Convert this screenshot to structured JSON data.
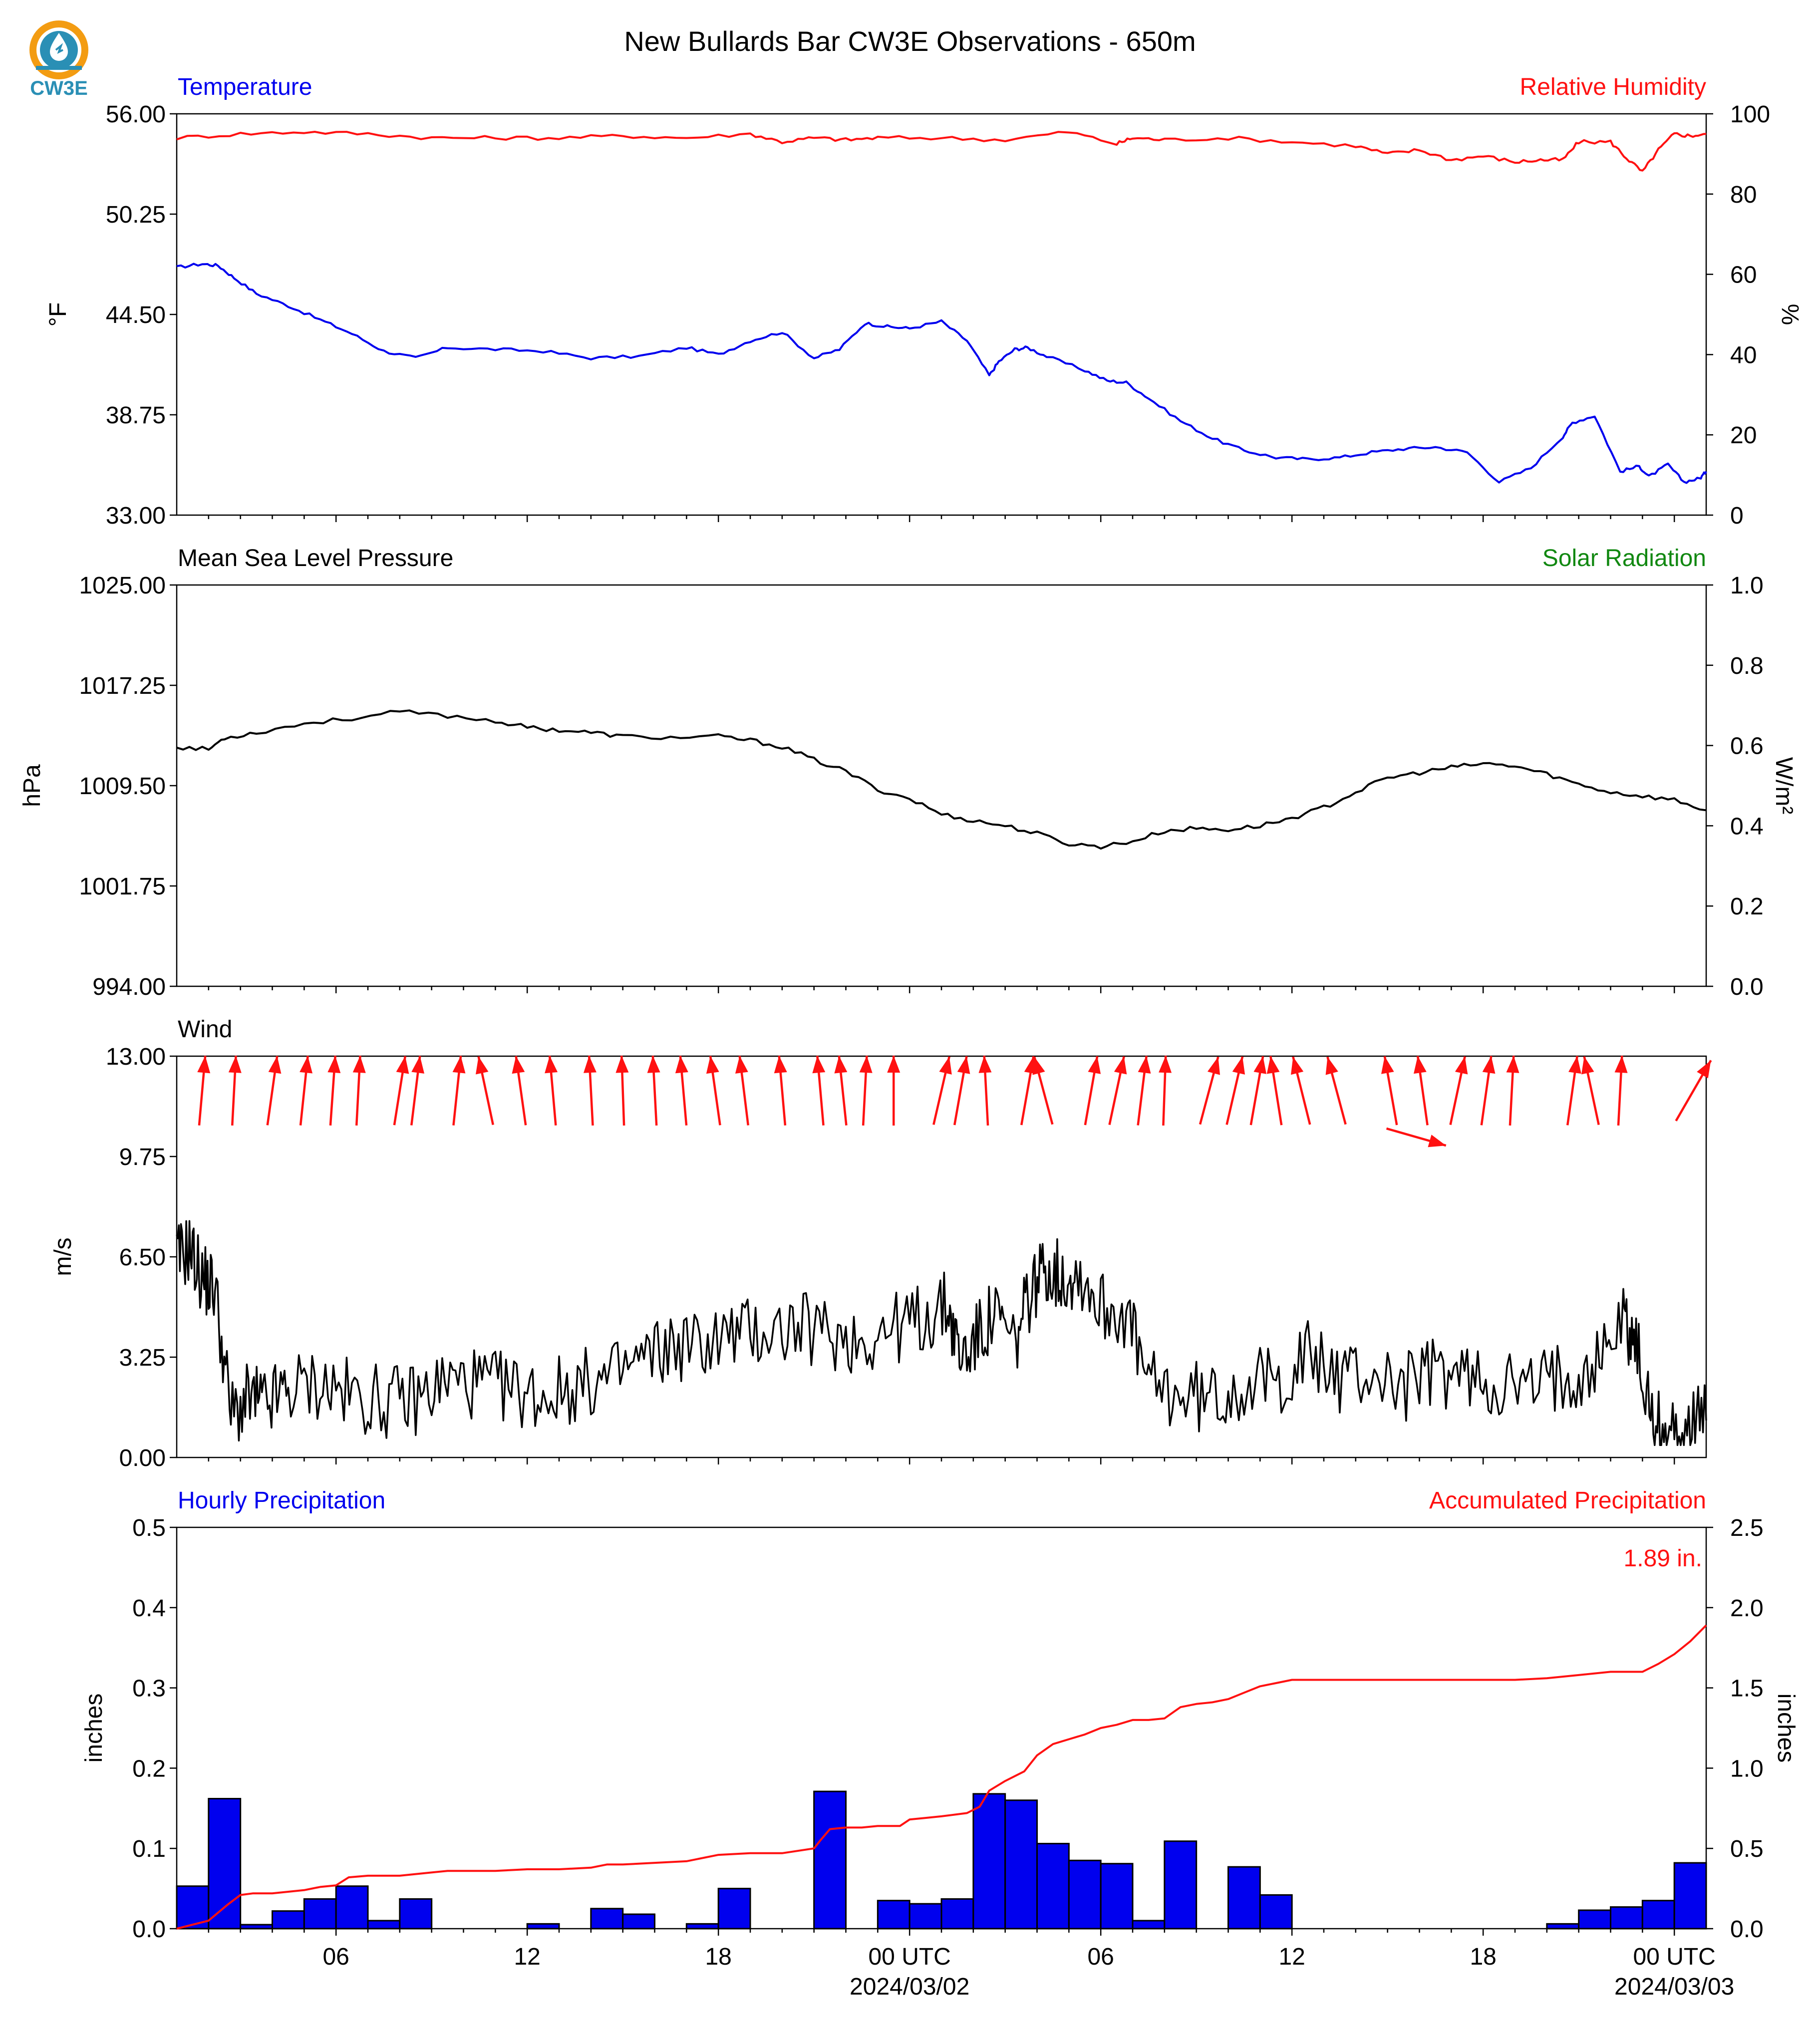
{
  "title": "New Bullards Bar CW3E Observations - 650m",
  "logo": {
    "text": "CW3E",
    "icon": "cw3e-water-drop-logo-icon",
    "colors": [
      "#f39c12",
      "#2a8fb5"
    ]
  },
  "colors": {
    "blue": "#0000ee",
    "red": "#ff1111",
    "green": "#118811",
    "black": "#000000"
  },
  "time_axis": {
    "tick_labels": [
      "06",
      "12",
      "18",
      "00 UTC",
      "06",
      "12",
      "18",
      "00 UTC"
    ],
    "date_labels": [
      "2024/03/02",
      "2024/03/03"
    ]
  },
  "chart_data": [
    {
      "type": "line",
      "panel": "temperature-humidity",
      "left_title": "Temperature",
      "right_title": "Relative Humidity",
      "ylabel_left": "°F",
      "ylabel_right": "%",
      "yticks_left": [
        "56.00",
        "50.25",
        "44.50",
        "38.75",
        "33.00"
      ],
      "yticks_right": [
        "100",
        "80",
        "60",
        "40",
        "20",
        "0"
      ],
      "ylim_left": [
        33,
        56
      ],
      "ylim_right": [
        0,
        100
      ],
      "xlim_hours": [
        1,
        49
      ],
      "series": [
        {
          "name": "Temperature",
          "axis": "left",
          "color": "#0000ee",
          "x": [
            1.0,
            1.8,
            2.3,
            2.8,
            3.5,
            4.5,
            5.5,
            6.5,
            7.5,
            8.5,
            9.5,
            11,
            12.5,
            14,
            15.5,
            17,
            18,
            19,
            20,
            21,
            21.8,
            22.6,
            23.3,
            24,
            25,
            25.8,
            26.5,
            26.8,
            27.3,
            27.7,
            28.3,
            29.5,
            30.2,
            30.8,
            31.5,
            32.5,
            33.5,
            34.5,
            35.5,
            36.5,
            37.5,
            38.5,
            39.5,
            40.5,
            41.5,
            42.5,
            43.5,
            44.5,
            44.8,
            45.5,
            46.3,
            46.9,
            47.2,
            47.8,
            48.3,
            48.8,
            49.0
          ],
          "y": [
            47.2,
            47.4,
            47.3,
            46.6,
            45.7,
            45.0,
            44.2,
            43.4,
            42.4,
            42.0,
            42.6,
            42.5,
            42.4,
            42.0,
            42.1,
            42.6,
            42.2,
            43.0,
            43.5,
            42.0,
            42.5,
            44.0,
            43.8,
            43.7,
            44.1,
            43.0,
            41.0,
            41.8,
            42.5,
            42.6,
            42.1,
            41.3,
            40.7,
            40.6,
            39.7,
            38.4,
            37.4,
            36.7,
            36.3,
            36.2,
            36.3,
            36.6,
            36.8,
            36.9,
            36.6,
            34.9,
            35.7,
            37.5,
            38.3,
            38.7,
            35.5,
            35.8,
            35.2,
            35.9,
            34.9,
            35.1,
            35.5
          ]
        },
        {
          "name": "Relative Humidity",
          "axis": "right",
          "color": "#ff1111",
          "x": [
            1.0,
            3,
            5,
            7,
            9,
            11,
            13,
            15,
            17,
            19,
            20,
            21,
            22,
            23,
            25,
            27,
            29,
            30.5,
            31,
            32,
            34,
            36,
            38,
            39,
            40,
            41,
            42,
            43,
            43.8,
            44.5,
            45,
            46,
            46.5,
            47,
            47.5,
            48,
            48.5,
            49.0
          ],
          "y": [
            94,
            95,
            95.5,
            95,
            94,
            94,
            94,
            94.5,
            94,
            95,
            93,
            94,
            93.5,
            94,
            94,
            93.5,
            95.5,
            92.5,
            94,
            93.5,
            94,
            93,
            92,
            90,
            91,
            88.5,
            89.5,
            88,
            88.5,
            88.5,
            93,
            93,
            89,
            85.5,
            91,
            95,
            94.5,
            95
          ]
        }
      ]
    },
    {
      "type": "line",
      "panel": "pressure-solar",
      "left_title": "Mean Sea Level Pressure",
      "right_title": "Solar Radiation",
      "ylabel_left": "hPa",
      "ylabel_right": "W/m²",
      "yticks_left": [
        "1025.00",
        "1017.25",
        "1009.50",
        "1001.75",
        "994.00"
      ],
      "yticks_right": [
        "1.0",
        "0.8",
        "0.6",
        "0.4",
        "0.2",
        "0.0"
      ],
      "ylim_left": [
        994,
        1025
      ],
      "ylim_right": [
        0,
        1
      ],
      "series": [
        {
          "name": "Mean Sea Level Pressure",
          "axis": "left",
          "color": "#000000",
          "x": [
            1.0,
            2.0,
            2.5,
            3.5,
            5,
            6.5,
            8,
            9.5,
            11,
            12,
            13,
            14,
            15,
            16.5,
            18,
            19,
            20,
            21,
            22,
            23,
            24,
            25,
            26,
            27,
            28,
            29,
            30,
            31,
            32,
            33,
            34,
            35,
            36,
            37,
            38,
            39,
            40,
            41,
            42,
            43,
            44,
            45,
            46,
            47,
            48,
            49.0
          ],
          "y": [
            1012.5,
            1012.3,
            1013.2,
            1013.6,
            1014.3,
            1014.7,
            1015.2,
            1014.9,
            1014.5,
            1014.0,
            1013.8,
            1013.6,
            1013.3,
            1013.2,
            1013.3,
            1013.0,
            1012.5,
            1011.5,
            1010.6,
            1009.2,
            1008.5,
            1007.3,
            1006.8,
            1006.4,
            1005.8,
            1005.0,
            1004.8,
            1005.2,
            1006.0,
            1006.2,
            1006.1,
            1006.4,
            1007.0,
            1007.8,
            1009.0,
            1010.1,
            1010.5,
            1010.9,
            1011.2,
            1011.0,
            1010.4,
            1009.6,
            1009.0,
            1008.7,
            1008.4,
            1007.6
          ]
        }
      ]
    },
    {
      "type": "line",
      "panel": "wind",
      "left_title": "Wind",
      "ylabel_left": "m/s",
      "yticks_left": [
        "13.00",
        "9.75",
        "6.50",
        "3.25",
        "0.00"
      ],
      "ylim_left": [
        0,
        13
      ],
      "series": [
        {
          "name": "Wind Speed",
          "axis": "left",
          "color": "#000000",
          "x": [
            1.0,
            1.4,
            1.8,
            2.2,
            2.7,
            3.3,
            3.8,
            4.5,
            5.5,
            6.5,
            7.5,
            8.5,
            9.5,
            10.5,
            11.5,
            12.5,
            13.5,
            14.5,
            15.5,
            16.5,
            17.5,
            18.5,
            19.5,
            20.5,
            21.5,
            22.5,
            23.5,
            24.5,
            25.2,
            25.6,
            26.2,
            26.7,
            27.3,
            27.8,
            28.3,
            28.8,
            29.3,
            30,
            30.8,
            31.5,
            32.5,
            33.5,
            34.5,
            35.5,
            36.5,
            37.5,
            38.5,
            39.5,
            40.5,
            41.5,
            42.5,
            43.5,
            44.5,
            45.5,
            46.4,
            46.8,
            47.3,
            47.8,
            48.4,
            49.0
          ],
          "y": [
            6.4,
            6.8,
            5.8,
            5.5,
            1.4,
            1.9,
            1.7,
            2.2,
            2.4,
            2.0,
            1.8,
            1.9,
            2.5,
            2.4,
            2.2,
            2.0,
            2.3,
            2.5,
            3.1,
            3.6,
            3.7,
            4.0,
            4.1,
            4.2,
            4.0,
            3.8,
            4.2,
            4.5,
            4.9,
            3.2,
            4.0,
            4.6,
            3.6,
            5.4,
            6.2,
            5.8,
            6.0,
            4.9,
            4.7,
            2.3,
            2.0,
            1.9,
            2.4,
            2.4,
            3.3,
            2.6,
            2.7,
            2.3,
            2.8,
            2.6,
            2.4,
            2.2,
            2.7,
            3.0,
            4.6,
            3.6,
            1.2,
            0.7,
            1.0,
            1.2
          ]
        }
      ],
      "arrows": {
        "color": "#ff1111",
        "x": [
          1.8,
          2.8,
          4.0,
          5.0,
          5.9,
          6.7,
          8.0,
          8.5,
          9.8,
          10.7,
          11.8,
          12.8,
          14.0,
          15.0,
          16.0,
          16.9,
          17.9,
          18.8,
          20.0,
          21.2,
          21.9,
          22.6,
          23.5,
          25.0,
          25.6,
          26.4,
          27.7,
          28.2,
          29.7,
          30.5,
          31.3,
          32.0,
          33.4,
          34.2,
          34.9,
          35.5,
          36.3,
          37.4,
          39.1,
          40.1,
          41.2,
          42.1,
          42.9,
          44.8,
          45.4,
          46.3,
          48.6
        ],
        "dir_deg": [
          5,
          3,
          8,
          6,
          4,
          3,
          9,
          7,
          6,
          -12,
          -8,
          -5,
          -3,
          -2,
          -3,
          -5,
          -8,
          -7,
          -5,
          -5,
          -6,
          3,
          0,
          13,
          10,
          -3,
          10,
          -15,
          10,
          12,
          7,
          2,
          15,
          13,
          10,
          -9,
          -14,
          -15,
          -10,
          -8,
          12,
          8,
          3,
          8,
          -12,
          3,
          30
        ],
        "x_out": [
          39.9
        ],
        "dir_out": [
          106
        ]
      }
    },
    {
      "type": "bar",
      "panel": "precipitation",
      "left_title": "Hourly Precipitation",
      "right_title": "Accumulated Precipitation",
      "total_label": "1.89 in.",
      "ylabel_left": "inches",
      "ylabel_right": "inches",
      "yticks_left": [
        "0.5",
        "0.4",
        "0.3",
        "0.2",
        "0.1",
        "0.0"
      ],
      "yticks_right": [
        "2.5",
        "2.0",
        "1.5",
        "1.0",
        "0.5",
        "0.0"
      ],
      "ylim_left": [
        0,
        0.5
      ],
      "ylim_right": [
        0,
        2.5
      ],
      "bar_starts": [
        1,
        2,
        3,
        4,
        5,
        6,
        7,
        8,
        9,
        10,
        11,
        12,
        13,
        14,
        15,
        16,
        17,
        18,
        19,
        20,
        21,
        22,
        23,
        24,
        25,
        26,
        27,
        28,
        29,
        30,
        31,
        32,
        33,
        34,
        35,
        36,
        37,
        38,
        39,
        40,
        41,
        42,
        43,
        44,
        45,
        46,
        47,
        48
      ],
      "values": [
        0.053,
        0.162,
        0.005,
        0.022,
        0.037,
        0.053,
        0.01,
        0.037,
        0,
        0,
        0,
        0.006,
        0,
        0.025,
        0.018,
        0,
        0.006,
        0.05,
        0,
        0,
        0.171,
        0,
        0.035,
        0.031,
        0.037,
        0.168,
        0.16,
        0.106,
        0.085,
        0.081,
        0.01,
        0.109,
        0,
        0.077,
        0.042,
        0,
        0,
        0,
        0,
        0,
        0,
        0,
        0,
        0.006,
        0.023,
        0.027,
        0.035,
        0.082
      ],
      "bar_color": "#0000ee",
      "series": [
        {
          "name": "Accumulated Precipitation",
          "axis": "right",
          "color": "#ff1111",
          "x": [
            1,
            2,
            2.6,
            3,
            3.4,
            4,
            5,
            5.5,
            6,
            6.4,
            7,
            8,
            9,
            9.5,
            10,
            11,
            12,
            13,
            14,
            14.5,
            15,
            16,
            17,
            18,
            19,
            20,
            21,
            21.2,
            21.5,
            22,
            22.5,
            23,
            23.7,
            24,
            24.5,
            25,
            25.8,
            26.2,
            26.5,
            27,
            27.6,
            28,
            28.5,
            29,
            29.5,
            30,
            30.5,
            31,
            31.5,
            32,
            32.5,
            33,
            33.5,
            34,
            34.5,
            35,
            35.5,
            36,
            38,
            40,
            42,
            43,
            44,
            45,
            46,
            47,
            47.5,
            48,
            48.5,
            49
          ],
          "y": [
            0,
            0.05,
            0.15,
            0.21,
            0.22,
            0.22,
            0.24,
            0.26,
            0.27,
            0.32,
            0.33,
            0.33,
            0.35,
            0.36,
            0.36,
            0.36,
            0.37,
            0.37,
            0.38,
            0.4,
            0.4,
            0.41,
            0.42,
            0.46,
            0.47,
            0.47,
            0.5,
            0.55,
            0.62,
            0.63,
            0.63,
            0.64,
            0.64,
            0.68,
            0.69,
            0.7,
            0.72,
            0.76,
            0.86,
            0.92,
            0.98,
            1.08,
            1.15,
            1.18,
            1.21,
            1.25,
            1.27,
            1.3,
            1.3,
            1.31,
            1.38,
            1.4,
            1.41,
            1.43,
            1.47,
            1.51,
            1.53,
            1.55,
            1.55,
            1.55,
            1.55,
            1.55,
            1.56,
            1.58,
            1.6,
            1.6,
            1.65,
            1.71,
            1.79,
            1.89
          ]
        }
      ]
    }
  ]
}
